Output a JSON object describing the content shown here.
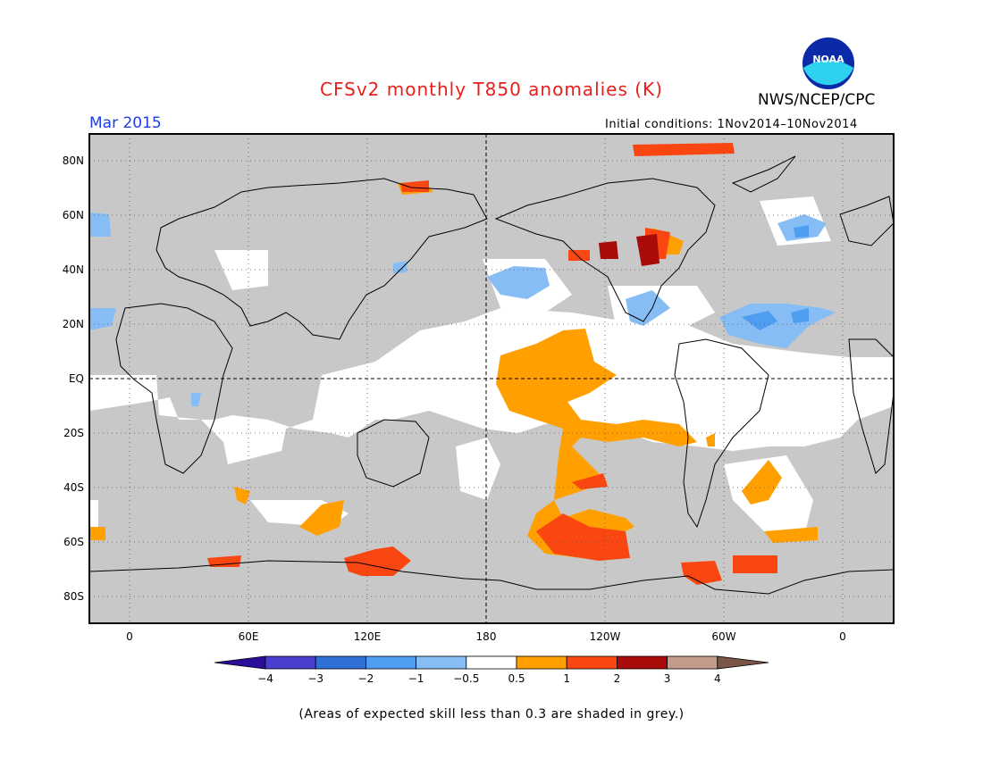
{
  "title": "CFSv2 monthly T850 anomalies (K)",
  "agency": "NWS/NCEP/CPC",
  "logo_text": "NOAA",
  "month": "Mar 2015",
  "initial_conditions": "Initial conditions: 1Nov2014–10Nov2014",
  "footnote": "(Areas of expected skill less than 0.3 are shaded in grey.)",
  "map": {
    "lon_ticks": [
      "0",
      "60E",
      "120E",
      "180",
      "120W",
      "60W",
      "0"
    ],
    "lat_ticks": [
      "80N",
      "60N",
      "40N",
      "20N",
      "EQ",
      "20S",
      "40S",
      "60S",
      "80S"
    ],
    "skill_shade_color": "#c8c8c8"
  },
  "colorbar": {
    "labels": [
      "−4",
      "−3",
      "−2",
      "−1",
      "−0.5",
      "0.5",
      "1",
      "2",
      "3",
      "4"
    ],
    "colors": [
      "#2a0e9b",
      "#4a3fcf",
      "#2f6fd6",
      "#4f9df0",
      "#86bdf5",
      "#ffffff",
      "#ff9f00",
      "#fa4610",
      "#a90b0b",
      "#c49c8c",
      "#7b5547"
    ]
  }
}
